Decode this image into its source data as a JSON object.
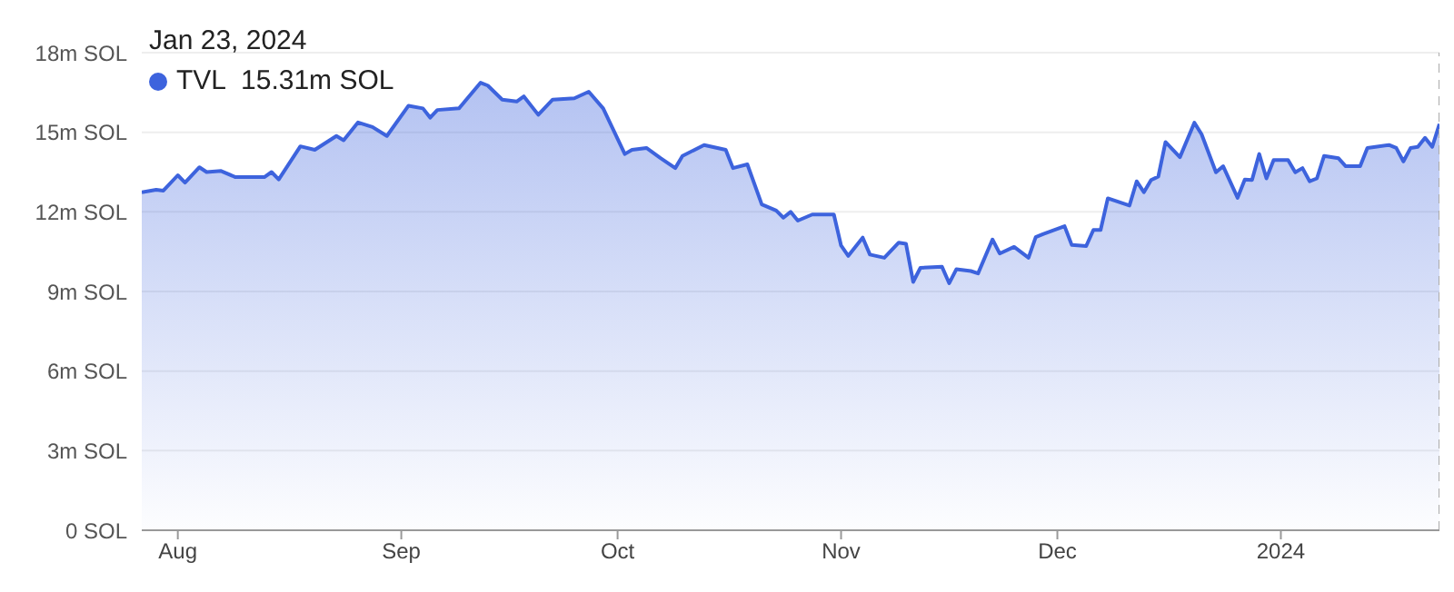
{
  "chart_data": {
    "type": "area",
    "legend": "top left",
    "grid": "y",
    "x": [
      "2023-07-27",
      "2023-07-29",
      "2023-07-30",
      "2023-08-01",
      "2023-08-02",
      "2023-08-04",
      "2023-08-05",
      "2023-08-07",
      "2023-08-09",
      "2023-08-13",
      "2023-08-14",
      "2023-08-15",
      "2023-08-18",
      "2023-08-20",
      "2023-08-23",
      "2023-08-24",
      "2023-08-26",
      "2023-08-28",
      "2023-08-30",
      "2023-09-02",
      "2023-09-04",
      "2023-09-05",
      "2023-09-06",
      "2023-09-09",
      "2023-09-12",
      "2023-09-13",
      "2023-09-15",
      "2023-09-17",
      "2023-09-18",
      "2023-09-20",
      "2023-09-22",
      "2023-09-25",
      "2023-09-27",
      "2023-09-29",
      "2023-10-02",
      "2023-10-03",
      "2023-10-05",
      "2023-10-07",
      "2023-10-09",
      "2023-10-10",
      "2023-10-13",
      "2023-10-16",
      "2023-10-17",
      "2023-10-19",
      "2023-10-21",
      "2023-10-23",
      "2023-10-24",
      "2023-10-25",
      "2023-10-26",
      "2023-10-28",
      "2023-10-31",
      "2023-11-01",
      "2023-11-02",
      "2023-11-04",
      "2023-11-05",
      "2023-11-07",
      "2023-11-09",
      "2023-11-10",
      "2023-11-11",
      "2023-11-12",
      "2023-11-15",
      "2023-11-16",
      "2023-11-17",
      "2023-11-19",
      "2023-11-20",
      "2023-11-22",
      "2023-11-23",
      "2023-11-25",
      "2023-11-27",
      "2023-11-28",
      "2023-11-29",
      "2023-12-02",
      "2023-12-03",
      "2023-12-05",
      "2023-12-06",
      "2023-12-07",
      "2023-12-08",
      "2023-12-11",
      "2023-12-12",
      "2023-12-13",
      "2023-12-14",
      "2023-12-15",
      "2023-12-16",
      "2023-12-18",
      "2023-12-20",
      "2023-12-21",
      "2023-12-23",
      "2023-12-24",
      "2023-12-26",
      "2023-12-27",
      "2023-12-28",
      "2023-12-29",
      "2023-12-30",
      "2023-12-31",
      "2024-01-02",
      "2024-01-03",
      "2024-01-04",
      "2024-01-05",
      "2024-01-06",
      "2024-01-07",
      "2024-01-09",
      "2024-01-10",
      "2024-01-12",
      "2024-01-13",
      "2024-01-16",
      "2024-01-17",
      "2024-01-18",
      "2024-01-19",
      "2024-01-20",
      "2024-01-21",
      "2024-01-22",
      "2024-01-23"
    ],
    "series": [
      {
        "name": "TVL",
        "color": "#3d63dd",
        "values": [
          12.74,
          12.83,
          12.8,
          13.38,
          13.1,
          13.68,
          13.5,
          13.54,
          13.31,
          13.31,
          13.5,
          13.22,
          14.47,
          14.34,
          14.86,
          14.7,
          15.37,
          15.2,
          14.86,
          16.0,
          15.9,
          15.55,
          15.84,
          15.9,
          16.87,
          16.76,
          16.23,
          16.16,
          16.35,
          15.66,
          16.23,
          16.28,
          16.53,
          15.9,
          14.18,
          14.34,
          14.41,
          14.02,
          13.65,
          14.11,
          14.52,
          14.34,
          13.65,
          13.79,
          12.28,
          12.05,
          11.78,
          12.0,
          11.67,
          11.9,
          11.9,
          10.73,
          10.34,
          11.03,
          10.39,
          10.27,
          10.84,
          10.8,
          9.36,
          9.89,
          9.93,
          9.31,
          9.84,
          9.77,
          9.68,
          10.96,
          10.43,
          10.68,
          10.27,
          11.05,
          11.16,
          11.46,
          10.75,
          10.71,
          11.32,
          11.32,
          12.51,
          12.24,
          13.15,
          12.74,
          13.2,
          13.33,
          14.63,
          14.06,
          15.36,
          14.93,
          13.49,
          13.72,
          12.53,
          13.22,
          13.2,
          14.18,
          13.26,
          13.95,
          13.95,
          13.49,
          13.65,
          13.15,
          13.26,
          14.11,
          14.02,
          13.72,
          13.72,
          14.41,
          14.52,
          14.41,
          13.9,
          14.41,
          14.45,
          14.79,
          14.45,
          15.31
        ]
      }
    ],
    "xlim": [
      "2023-07-27",
      "2024-01-23"
    ],
    "xticks": [
      {
        "value": "2023-08-01",
        "label": "Aug"
      },
      {
        "value": "2023-09-01",
        "label": "Sep"
      },
      {
        "value": "2023-10-01",
        "label": "Oct"
      },
      {
        "value": "2023-11-01",
        "label": "Nov"
      },
      {
        "value": "2023-12-01",
        "label": "Dec"
      },
      {
        "value": "2024-01-01",
        "label": "2024"
      }
    ],
    "ylim": [
      0,
      18
    ],
    "yticks": [
      {
        "value": 0,
        "label": "0 SOL"
      },
      {
        "value": 3,
        "label": "3m SOL"
      },
      {
        "value": 6,
        "label": "6m SOL"
      },
      {
        "value": 9,
        "label": "9m SOL"
      },
      {
        "value": 12,
        "label": "12m SOL"
      },
      {
        "value": 15,
        "label": "15m SOL"
      },
      {
        "value": 18,
        "label": "18m SOL"
      }
    ],
    "ref_lines": [
      {
        "axis": "x",
        "value": "2024-01-23",
        "color": "#aaaaaa",
        "line_style": "dashed"
      }
    ],
    "annotations": [
      "Jan 23, 2024",
      "15.31m SOL"
    ]
  }
}
